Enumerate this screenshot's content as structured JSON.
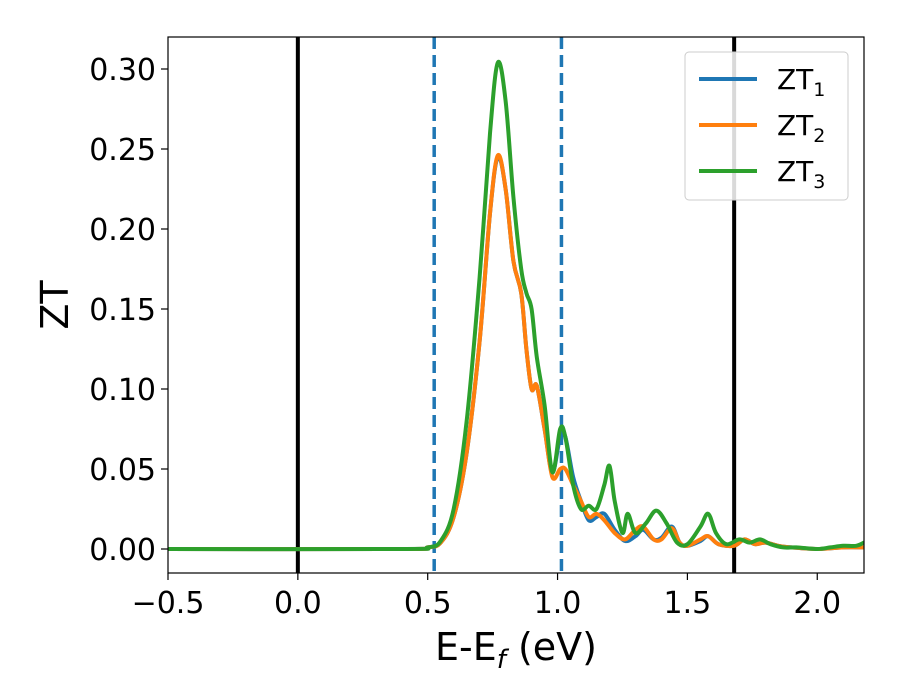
{
  "chart_data": {
    "type": "line",
    "title": "",
    "xlabel": {
      "main": "E-E",
      "sub": "f",
      "rest": " (eV)"
    },
    "ylabel": "ZT",
    "xlim": [
      -0.5,
      2.18
    ],
    "ylim": [
      -0.015,
      0.32
    ],
    "xticks": [
      -0.5,
      0.0,
      0.5,
      1.0,
      1.5,
      2.0
    ],
    "xtick_labels": [
      "−0.5",
      "0.0",
      "0.5",
      "1.0",
      "1.5",
      "2.0"
    ],
    "yticks": [
      0.0,
      0.05,
      0.1,
      0.15,
      0.2,
      0.25,
      0.3
    ],
    "ytick_labels": [
      "0.00",
      "0.05",
      "0.10",
      "0.15",
      "0.20",
      "0.25",
      "0.30"
    ],
    "grid": false,
    "legend_position": "upper right",
    "reference_lines": [
      {
        "x": 0.0,
        "color": "#000000",
        "style": "solid"
      },
      {
        "x": 1.68,
        "color": "#000000",
        "style": "solid"
      },
      {
        "x": 0.525,
        "color": "#1f77b4",
        "style": "dashed"
      },
      {
        "x": 1.015,
        "color": "#1f77b4",
        "style": "dashed"
      }
    ],
    "series": [
      {
        "name": "ZT",
        "sub": "1",
        "color": "#1f77b4",
        "points": [
          [
            -0.5,
            0
          ],
          [
            0.4,
            0
          ],
          [
            0.5,
            0.001
          ],
          [
            0.55,
            0.004
          ],
          [
            0.6,
            0.02
          ],
          [
            0.65,
            0.06
          ],
          [
            0.7,
            0.13
          ],
          [
            0.74,
            0.21
          ],
          [
            0.77,
            0.245
          ],
          [
            0.8,
            0.225
          ],
          [
            0.83,
            0.18
          ],
          [
            0.86,
            0.16
          ],
          [
            0.88,
            0.125
          ],
          [
            0.9,
            0.1
          ],
          [
            0.92,
            0.102
          ],
          [
            0.95,
            0.075
          ],
          [
            0.98,
            0.048
          ],
          [
            1.01,
            0.07
          ],
          [
            1.03,
            0.07
          ],
          [
            1.06,
            0.045
          ],
          [
            1.09,
            0.03
          ],
          [
            1.12,
            0.018
          ],
          [
            1.15,
            0.02
          ],
          [
            1.18,
            0.022
          ],
          [
            1.22,
            0.012
          ],
          [
            1.26,
            0.005
          ],
          [
            1.3,
            0.008
          ],
          [
            1.33,
            0.012
          ],
          [
            1.37,
            0.006
          ],
          [
            1.4,
            0.007
          ],
          [
            1.44,
            0.014
          ],
          [
            1.47,
            0.004
          ],
          [
            1.5,
            0.002
          ],
          [
            1.55,
            0.005
          ],
          [
            1.58,
            0.008
          ],
          [
            1.62,
            0.003
          ],
          [
            1.68,
            0.002
          ],
          [
            1.72,
            0.006
          ],
          [
            1.76,
            0.003
          ],
          [
            1.8,
            0.004
          ],
          [
            1.85,
            0.002
          ],
          [
            1.9,
            0.001
          ],
          [
            2.0,
            0
          ],
          [
            2.1,
            0.001
          ],
          [
            2.18,
            0.001
          ]
        ]
      },
      {
        "name": "ZT",
        "sub": "2",
        "color": "#ff7f0e",
        "points": [
          [
            -0.5,
            0
          ],
          [
            0.4,
            0
          ],
          [
            0.5,
            0.001
          ],
          [
            0.55,
            0.004
          ],
          [
            0.6,
            0.02
          ],
          [
            0.65,
            0.06
          ],
          [
            0.7,
            0.13
          ],
          [
            0.74,
            0.21
          ],
          [
            0.77,
            0.246
          ],
          [
            0.8,
            0.225
          ],
          [
            0.83,
            0.18
          ],
          [
            0.86,
            0.16
          ],
          [
            0.88,
            0.125
          ],
          [
            0.9,
            0.1
          ],
          [
            0.92,
            0.102
          ],
          [
            0.95,
            0.075
          ],
          [
            0.98,
            0.045
          ],
          [
            1.01,
            0.05
          ],
          [
            1.03,
            0.05
          ],
          [
            1.06,
            0.04
          ],
          [
            1.09,
            0.03
          ],
          [
            1.12,
            0.02
          ],
          [
            1.15,
            0.022
          ],
          [
            1.18,
            0.018
          ],
          [
            1.22,
            0.01
          ],
          [
            1.26,
            0.006
          ],
          [
            1.3,
            0.012
          ],
          [
            1.33,
            0.014
          ],
          [
            1.37,
            0.006
          ],
          [
            1.4,
            0.006
          ],
          [
            1.44,
            0.013
          ],
          [
            1.47,
            0.004
          ],
          [
            1.5,
            0.002
          ],
          [
            1.55,
            0.006
          ],
          [
            1.58,
            0.008
          ],
          [
            1.62,
            0.003
          ],
          [
            1.68,
            0.002
          ],
          [
            1.72,
            0.006
          ],
          [
            1.76,
            0.003
          ],
          [
            1.8,
            0.004
          ],
          [
            1.85,
            0.002
          ],
          [
            1.9,
            0.001
          ],
          [
            2.0,
            0
          ],
          [
            2.1,
            0.001
          ],
          [
            2.18,
            0.001
          ]
        ]
      },
      {
        "name": "ZT",
        "sub": "3",
        "color": "#2ca02c",
        "points": [
          [
            -0.5,
            0
          ],
          [
            0.4,
            0
          ],
          [
            0.5,
            0.001
          ],
          [
            0.55,
            0.005
          ],
          [
            0.6,
            0.025
          ],
          [
            0.65,
            0.08
          ],
          [
            0.7,
            0.17
          ],
          [
            0.74,
            0.26
          ],
          [
            0.77,
            0.304
          ],
          [
            0.8,
            0.28
          ],
          [
            0.83,
            0.22
          ],
          [
            0.86,
            0.175
          ],
          [
            0.88,
            0.16
          ],
          [
            0.9,
            0.15
          ],
          [
            0.92,
            0.12
          ],
          [
            0.95,
            0.09
          ],
          [
            0.98,
            0.048
          ],
          [
            1.01,
            0.075
          ],
          [
            1.03,
            0.07
          ],
          [
            1.06,
            0.04
          ],
          [
            1.09,
            0.025
          ],
          [
            1.12,
            0.027
          ],
          [
            1.15,
            0.025
          ],
          [
            1.18,
            0.04
          ],
          [
            1.2,
            0.052
          ],
          [
            1.22,
            0.03
          ],
          [
            1.25,
            0.01
          ],
          [
            1.27,
            0.022
          ],
          [
            1.3,
            0.01
          ],
          [
            1.34,
            0.016
          ],
          [
            1.38,
            0.024
          ],
          [
            1.42,
            0.016
          ],
          [
            1.46,
            0.004
          ],
          [
            1.5,
            0.003
          ],
          [
            1.55,
            0.014
          ],
          [
            1.58,
            0.022
          ],
          [
            1.61,
            0.01
          ],
          [
            1.65,
            0.003
          ],
          [
            1.7,
            0.006
          ],
          [
            1.74,
            0.004
          ],
          [
            1.78,
            0.006
          ],
          [
            1.82,
            0.003
          ],
          [
            1.87,
            0.001
          ],
          [
            1.92,
            0.001
          ],
          [
            2.0,
            0
          ],
          [
            2.05,
            0.001
          ],
          [
            2.1,
            0.002
          ],
          [
            2.15,
            0.002
          ],
          [
            2.18,
            0.004
          ]
        ]
      }
    ]
  }
}
